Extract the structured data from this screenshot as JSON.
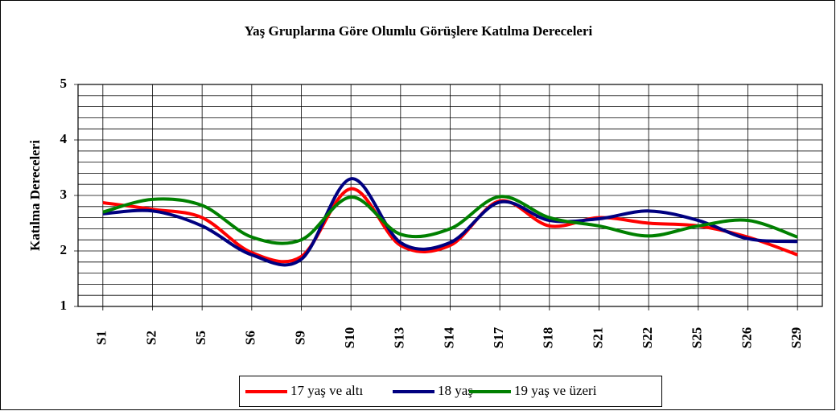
{
  "chart_data": {
    "type": "line",
    "title": "Yaş Gruplarına Göre Olumlu Görüşlere Katılma Dereceleri",
    "y_label": "Katılma Dereceleri",
    "categories": [
      "S1",
      "S2",
      "S5",
      "S6",
      "S9",
      "S10",
      "S13",
      "S14",
      "S17",
      "S18",
      "S21",
      "S22",
      "S25",
      "S26",
      "S29"
    ],
    "series": [
      {
        "name": "17 yaş ve altı",
        "color": "#ff0000",
        "values": [
          2.87,
          2.75,
          2.6,
          1.97,
          1.9,
          3.12,
          2.1,
          2.1,
          2.9,
          2.45,
          2.6,
          2.5,
          2.45,
          2.25,
          1.93
        ]
      },
      {
        "name": "18 yaş",
        "color": "#000080",
        "values": [
          2.67,
          2.72,
          2.45,
          1.93,
          1.85,
          3.3,
          2.15,
          2.15,
          2.88,
          2.55,
          2.58,
          2.72,
          2.55,
          2.22,
          2.17
        ]
      },
      {
        "name": "19 yaş ve üzeri",
        "color": "#008000",
        "values": [
          2.7,
          2.93,
          2.82,
          2.25,
          2.2,
          2.97,
          2.3,
          2.4,
          2.98,
          2.6,
          2.45,
          2.27,
          2.45,
          2.55,
          2.25
        ]
      }
    ],
    "ylim": [
      1,
      5
    ],
    "yticks": [
      1,
      2,
      3,
      4,
      5
    ],
    "grid": true,
    "smooth": true,
    "legend": "bottom"
  }
}
